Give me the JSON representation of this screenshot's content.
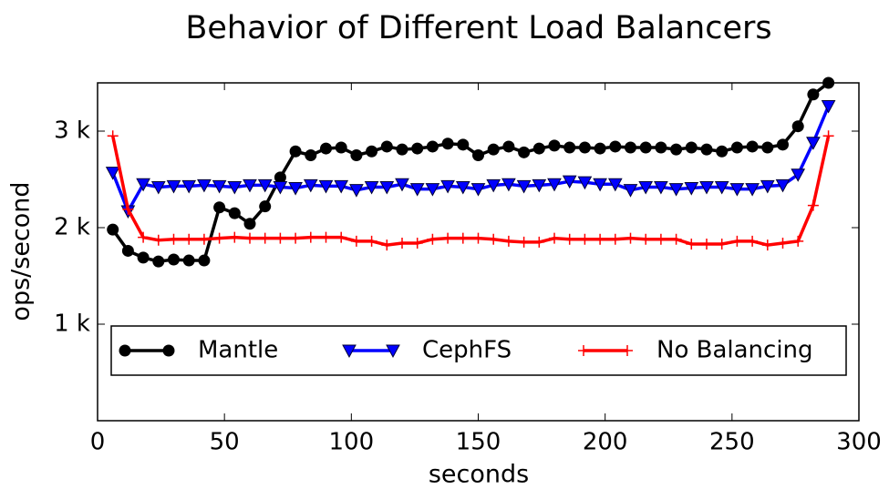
{
  "chart_data": {
    "type": "line",
    "title": "Behavior of Different Load Balancers",
    "x_label": "seconds",
    "y_label": "ops/second",
    "x": [
      6,
      12,
      18,
      24,
      30,
      36,
      42,
      48,
      54,
      60,
      66,
      72,
      78,
      84,
      90,
      96,
      102,
      108,
      114,
      120,
      126,
      132,
      138,
      144,
      150,
      156,
      162,
      168,
      174,
      180,
      186,
      192,
      198,
      204,
      210,
      216,
      222,
      228,
      234,
      240,
      246,
      252,
      258,
      264,
      270,
      276,
      282,
      288
    ],
    "series": [
      {
        "name": "Mantle",
        "color": "#000000",
        "marker": "circle",
        "values": [
          1980,
          1760,
          1690,
          1650,
          1670,
          1660,
          1660,
          2210,
          2150,
          2040,
          2220,
          2520,
          2790,
          2750,
          2820,
          2830,
          2750,
          2790,
          2840,
          2810,
          2820,
          2840,
          2870,
          2860,
          2750,
          2810,
          2840,
          2780,
          2820,
          2850,
          2830,
          2830,
          2820,
          2840,
          2830,
          2830,
          2830,
          2810,
          2830,
          2810,
          2790,
          2830,
          2840,
          2830,
          2860,
          3050,
          3380,
          3500
        ]
      },
      {
        "name": "CephFS",
        "color": "#0000ff",
        "marker": "triangle-down",
        "values": [
          2570,
          2170,
          2450,
          2420,
          2430,
          2430,
          2440,
          2430,
          2420,
          2440,
          2440,
          2420,
          2410,
          2440,
          2430,
          2430,
          2390,
          2420,
          2420,
          2450,
          2400,
          2400,
          2430,
          2420,
          2400,
          2440,
          2450,
          2430,
          2440,
          2450,
          2480,
          2470,
          2450,
          2450,
          2390,
          2420,
          2420,
          2400,
          2410,
          2420,
          2420,
          2400,
          2400,
          2430,
          2440,
          2550,
          2880,
          3260
        ]
      },
      {
        "name": "No Balancing",
        "color": "#ff0000",
        "marker": "plus",
        "values": [
          2950,
          2190,
          1900,
          1870,
          1880,
          1880,
          1880,
          1890,
          1900,
          1890,
          1890,
          1890,
          1890,
          1900,
          1900,
          1900,
          1860,
          1860,
          1820,
          1840,
          1840,
          1880,
          1890,
          1890,
          1890,
          1880,
          1860,
          1850,
          1850,
          1890,
          1880,
          1880,
          1880,
          1880,
          1890,
          1880,
          1880,
          1880,
          1830,
          1830,
          1830,
          1860,
          1860,
          1820,
          1840,
          1860,
          2230,
          2950
        ]
      }
    ],
    "xlim": [
      0,
      300
    ],
    "xticks": [
      0,
      50,
      100,
      150,
      200,
      250,
      300
    ],
    "ylim": [
      0,
      3500
    ],
    "yticks": [
      {
        "value": 1000,
        "label": "1 k"
      },
      {
        "value": 2000,
        "label": "2 k"
      },
      {
        "value": 3000,
        "label": "3 k"
      }
    ],
    "legend": "lower center"
  }
}
